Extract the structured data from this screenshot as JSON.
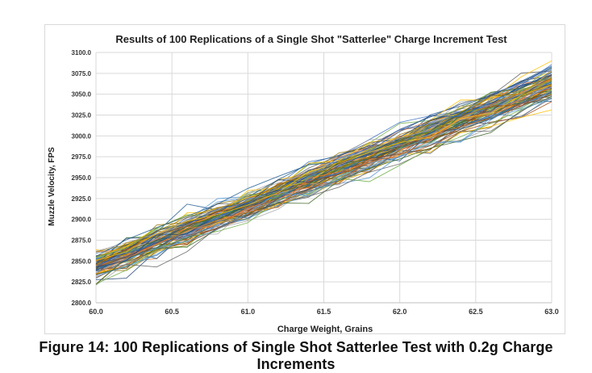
{
  "figure": {
    "caption": "Figure 14: 100 Replications of Single Shot Satterlee Test with 0.2g Charge Increments"
  },
  "chart_data": {
    "type": "line",
    "title": "Results of 100 Replications of a Single Shot \"Satterlee\" Charge Increment Test",
    "xlabel": "Charge Weight, Grains",
    "ylabel": "Muzzle Velocity, FPS",
    "xlim": [
      60.0,
      63.0
    ],
    "ylim": [
      2800.0,
      3100.0
    ],
    "x_ticks": [
      "60.0",
      "60.5",
      "61.0",
      "61.5",
      "62.0",
      "62.5",
      "63.0"
    ],
    "y_ticks": [
      "2800.0",
      "2825.0",
      "2850.0",
      "2875.0",
      "2900.0",
      "2925.0",
      "2950.0",
      "2975.0",
      "3000.0",
      "3025.0",
      "3050.0",
      "3075.0",
      "3100.0"
    ],
    "grid": true,
    "legend": "none",
    "x": [
      60.0,
      60.2,
      60.4,
      60.6,
      60.8,
      61.0,
      61.2,
      61.4,
      61.6,
      61.8,
      62.0,
      62.2,
      62.4,
      62.6,
      62.8,
      63.0
    ],
    "series_count": 100,
    "trend": {
      "slope_fps_per_grain": 72.5,
      "intercept_at_60": 2845.0,
      "scatter_sd": 7.0
    },
    "colors": [
      "#4472c4",
      "#ed7d31",
      "#a5a5a5",
      "#ffc000",
      "#5b9bd5",
      "#70ad47",
      "#264478",
      "#9e480e",
      "#636363",
      "#997300",
      "#255e91",
      "#43682b"
    ]
  }
}
